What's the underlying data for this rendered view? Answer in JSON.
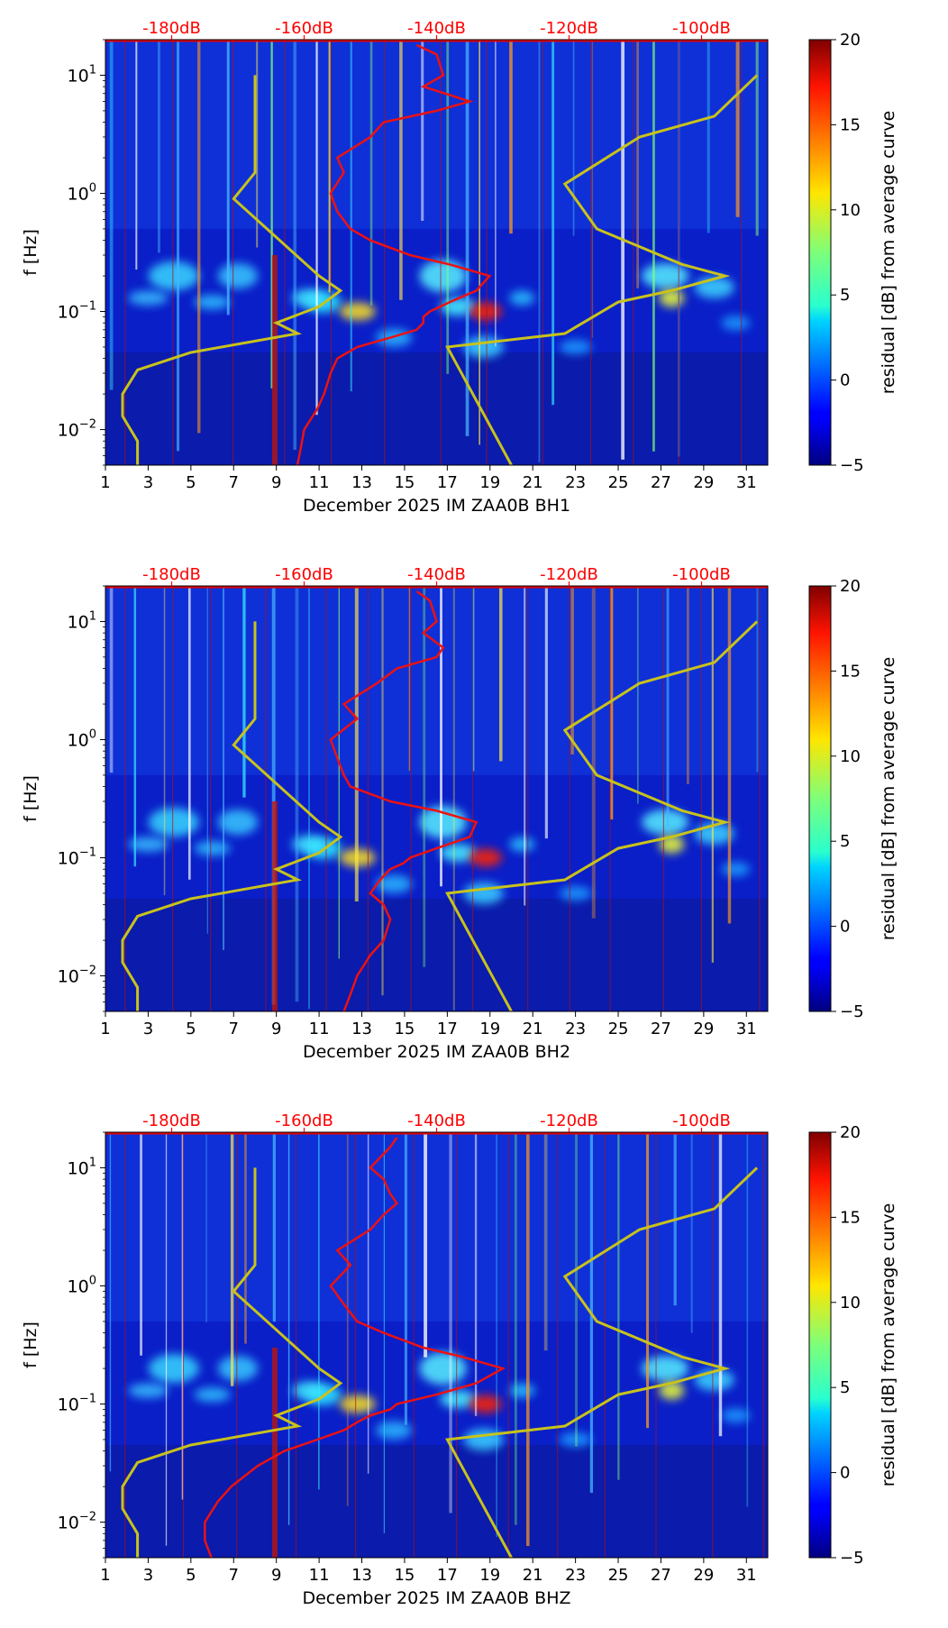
{
  "chart_data": [
    {
      "type": "heatmap",
      "station_label": "December 2025 IM ZAA0B  BH1",
      "ylabel": "f [Hz]",
      "xticks": [
        "1",
        "3",
        "5",
        "7",
        "9",
        "11",
        "13",
        "15",
        "17",
        "19",
        "21",
        "23",
        "25",
        "27",
        "29",
        "31"
      ],
      "yticks": [
        {
          "base": "10",
          "exp": "1",
          "value": 10
        },
        {
          "base": "10",
          "exp": "0",
          "value": 1
        },
        {
          "base": "10",
          "exp": "−1",
          "value": 0.1
        },
        {
          "base": "10",
          "exp": "−2",
          "value": 0.01
        }
      ],
      "ylim": [
        0.005,
        20
      ],
      "yscale": "log",
      "xlim": [
        1,
        32
      ],
      "top_axis_labels": [
        "-180dB",
        "-160dB",
        "-140dB",
        "-120dB",
        "-100dB"
      ],
      "top_axis_color": "#ff0000",
      "colorbar": {
        "label": "residual [dB] from average curve",
        "min": -5,
        "max": 20,
        "ticks": [
          "20",
          "15",
          "10",
          "5",
          "0",
          "−5"
        ]
      },
      "red_curve_db": {
        "freq_hz": [
          0.005,
          0.007,
          0.01,
          0.015,
          0.02,
          0.03,
          0.04,
          0.05,
          0.06,
          0.07,
          0.08,
          0.09,
          0.1,
          0.12,
          0.15,
          0.2,
          0.25,
          0.3,
          0.4,
          0.5,
          0.7,
          1,
          1.5,
          2,
          3,
          4,
          5,
          6,
          8,
          10,
          15,
          18
        ],
        "db": [
          -161,
          -160.5,
          -160,
          -158,
          -157,
          -156,
          -155,
          -152,
          -147,
          -143,
          -142,
          -142,
          -141,
          -138,
          -134,
          -132,
          -138,
          -144,
          -150,
          -153,
          -155,
          -156,
          -154,
          -155,
          -150,
          -148,
          -140,
          -135,
          -142,
          -139,
          -140,
          -143
        ]
      },
      "yellow_curve_left": {
        "x": [
          2.5,
          2.5,
          1.8,
          1.8,
          2.5,
          5,
          10,
          9,
          11,
          12,
          11,
          7,
          8,
          8,
          8
        ],
        "freq_hz": [
          0.005,
          0.008,
          0.013,
          0.02,
          0.032,
          0.045,
          0.065,
          0.08,
          0.11,
          0.15,
          0.2,
          0.9,
          1.5,
          3,
          10
        ]
      },
      "yellow_curve_right": {
        "x": [
          20,
          17,
          22.5,
          25,
          27.5,
          30,
          28,
          24,
          22.5,
          26,
          29.5,
          31.5
        ],
        "freq_hz": [
          0.005,
          0.05,
          0.065,
          0.12,
          0.15,
          0.2,
          0.25,
          0.5,
          1.2,
          3,
          4.5,
          10
        ]
      }
    },
    {
      "type": "heatmap",
      "station_label": "December 2025 IM ZAA0B  BH2",
      "ylabel": "f [Hz]",
      "xticks": [
        "1",
        "3",
        "5",
        "7",
        "9",
        "11",
        "13",
        "15",
        "17",
        "19",
        "21",
        "23",
        "25",
        "27",
        "29",
        "31"
      ],
      "yticks": [
        {
          "base": "10",
          "exp": "1",
          "value": 10
        },
        {
          "base": "10",
          "exp": "0",
          "value": 1
        },
        {
          "base": "10",
          "exp": "−1",
          "value": 0.1
        },
        {
          "base": "10",
          "exp": "−2",
          "value": 0.01
        }
      ],
      "ylim": [
        0.005,
        20
      ],
      "yscale": "log",
      "xlim": [
        1,
        32
      ],
      "top_axis_labels": [
        "-180dB",
        "-160dB",
        "-140dB",
        "-120dB",
        "-100dB"
      ],
      "top_axis_color": "#ff0000",
      "colorbar": {
        "label": "residual [dB] from average curve",
        "min": -5,
        "max": 20,
        "ticks": [
          "20",
          "15",
          "10",
          "5",
          "0",
          "−5"
        ]
      },
      "red_curve_db": {
        "freq_hz": [
          0.005,
          0.007,
          0.01,
          0.015,
          0.02,
          0.03,
          0.04,
          0.05,
          0.06,
          0.07,
          0.08,
          0.09,
          0.1,
          0.12,
          0.15,
          0.2,
          0.25,
          0.3,
          0.4,
          0.5,
          0.7,
          1,
          1.5,
          2,
          3,
          4,
          5,
          6,
          8,
          10,
          15,
          18
        ],
        "db": [
          -154,
          -153,
          -152,
          -150,
          -148,
          -147,
          -148,
          -150,
          -149,
          -148,
          -147,
          -145,
          -144,
          -140,
          -135,
          -134,
          -140,
          -147,
          -153,
          -154,
          -155,
          -156,
          -152,
          -154,
          -149,
          -146,
          -140,
          -139,
          -142,
          -140,
          -141,
          -143
        ]
      },
      "yellow_curve_left": {
        "x": [
          2.5,
          2.5,
          1.8,
          1.8,
          2.5,
          5,
          10,
          9,
          11,
          12,
          11,
          7,
          8,
          8,
          8
        ],
        "freq_hz": [
          0.005,
          0.008,
          0.013,
          0.02,
          0.032,
          0.045,
          0.065,
          0.08,
          0.11,
          0.15,
          0.2,
          0.9,
          1.5,
          3,
          10
        ]
      },
      "yellow_curve_right": {
        "x": [
          20,
          17,
          22.5,
          25,
          27.5,
          30,
          28,
          24,
          22.5,
          26,
          29.5,
          31.5
        ],
        "freq_hz": [
          0.005,
          0.05,
          0.065,
          0.12,
          0.15,
          0.2,
          0.25,
          0.5,
          1.2,
          3,
          4.5,
          10
        ]
      }
    },
    {
      "type": "heatmap",
      "station_label": "December 2025 IM ZAA0B  BHZ",
      "ylabel": "f [Hz]",
      "xticks": [
        "1",
        "3",
        "5",
        "7",
        "9",
        "11",
        "13",
        "15",
        "17",
        "19",
        "21",
        "23",
        "25",
        "27",
        "29",
        "31"
      ],
      "yticks": [
        {
          "base": "10",
          "exp": "1",
          "value": 10
        },
        {
          "base": "10",
          "exp": "0",
          "value": 1
        },
        {
          "base": "10",
          "exp": "−1",
          "value": 0.1
        },
        {
          "base": "10",
          "exp": "−2",
          "value": 0.01
        }
      ],
      "ylim": [
        0.005,
        20
      ],
      "yscale": "log",
      "xlim": [
        1,
        32
      ],
      "top_axis_labels": [
        "-180dB",
        "-160dB",
        "-140dB",
        "-120dB",
        "-100dB"
      ],
      "top_axis_color": "#ff0000",
      "colorbar": {
        "label": "residual [dB] from average curve",
        "min": -5,
        "max": 20,
        "ticks": [
          "20",
          "15",
          "10",
          "5",
          "0",
          "−5"
        ]
      },
      "red_curve_db": {
        "freq_hz": [
          0.005,
          0.007,
          0.01,
          0.015,
          0.02,
          0.03,
          0.04,
          0.05,
          0.06,
          0.07,
          0.08,
          0.09,
          0.1,
          0.12,
          0.15,
          0.2,
          0.25,
          0.3,
          0.4,
          0.5,
          0.7,
          1,
          1.5,
          2,
          3,
          4,
          5,
          6,
          8,
          10,
          15,
          18
        ],
        "db": [
          -174,
          -175,
          -175,
          -173,
          -171,
          -167,
          -163,
          -158,
          -154,
          -152,
          -150,
          -147,
          -146,
          -140,
          -134,
          -130,
          -136,
          -142,
          -148,
          -152,
          -154,
          -156,
          -153,
          -155,
          -150,
          -148,
          -146,
          -147,
          -148,
          -150,
          -147,
          -146
        ]
      },
      "yellow_curve_left": {
        "x": [
          2.5,
          2.5,
          1.8,
          1.8,
          2.5,
          5,
          10,
          9,
          11,
          12,
          11,
          7,
          8,
          8,
          8
        ],
        "freq_hz": [
          0.005,
          0.008,
          0.013,
          0.02,
          0.032,
          0.045,
          0.065,
          0.08,
          0.11,
          0.15,
          0.2,
          0.9,
          1.5,
          3,
          10
        ]
      },
      "yellow_curve_right": {
        "x": [
          20,
          17,
          22.5,
          25,
          27.5,
          30,
          28,
          24,
          22.5,
          26,
          29.5,
          31.5
        ],
        "freq_hz": [
          0.005,
          0.05,
          0.065,
          0.12,
          0.15,
          0.2,
          0.25,
          0.5,
          1.2,
          3,
          4.5,
          10
        ]
      }
    }
  ]
}
